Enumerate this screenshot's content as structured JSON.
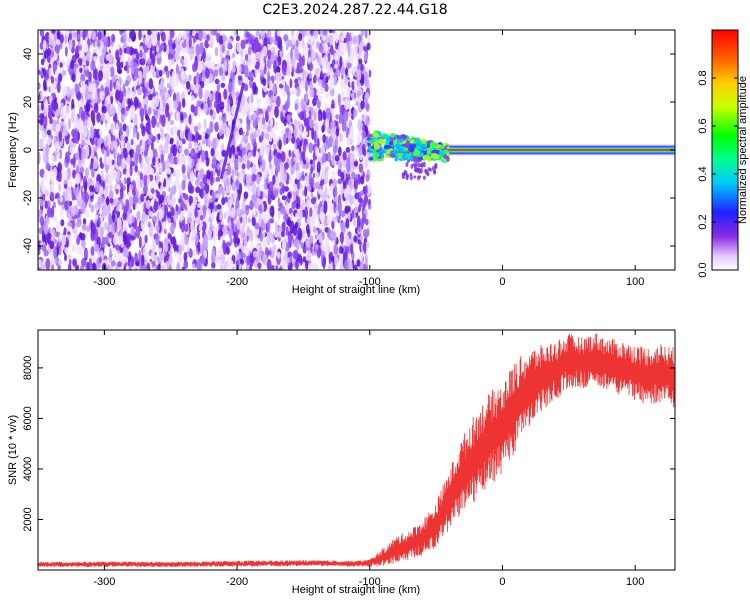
{
  "title": "C2E3.2024.287.22.44.G18",
  "colorbar": {
    "label": "Normalized spectral amplitude",
    "range": [
      0,
      1
    ],
    "ticks": [
      0.0,
      0.2,
      0.4,
      0.6,
      0.8
    ],
    "tick_labels": [
      "0.0",
      "0.2",
      "0.4",
      "0.6",
      "0.8"
    ]
  },
  "colors": {
    "spectrogram_noise": "#7a2ee6",
    "snr_line": "#ee3333",
    "axis": "#000000"
  },
  "chart_data": [
    {
      "type": "heatmap",
      "title": "",
      "xlabel": "Height of straight line (km)",
      "ylabel": "Frequency (Hz)",
      "xlim": [
        -350,
        130
      ],
      "ylim": [
        -50,
        50
      ],
      "xticks": [
        -300,
        -200,
        -100,
        0,
        100
      ],
      "yticks": [
        -40,
        -20,
        0,
        20,
        40
      ],
      "xtick_labels": [
        "-300",
        "-200",
        "-100",
        "0",
        "100"
      ],
      "ytick_labels": [
        "-40",
        "-20",
        "0",
        "20",
        "40"
      ],
      "regions": [
        {
          "x_range": [
            -350,
            -100
          ],
          "y_range": [
            -50,
            50
          ],
          "description": "broadband noise",
          "amplitude": 0.15
        },
        {
          "x_range": [
            -100,
            -40
          ],
          "y_range": [
            -8,
            8
          ],
          "description": "scattered multipath signal",
          "amplitude": 0.35
        },
        {
          "x_range": [
            -40,
            130
          ],
          "y_range": [
            -1,
            1
          ],
          "description": "coherent carrier",
          "amplitude": 0.95
        }
      ],
      "carrier_center_hz": [
        {
          "x": -100,
          "y": 2
        },
        {
          "x": -80,
          "y": 1
        },
        {
          "x": -60,
          "y": -1
        },
        {
          "x": -40,
          "y": 0
        },
        {
          "x": -20,
          "y": 0
        },
        {
          "x": 0,
          "y": 0
        },
        {
          "x": 50,
          "y": 0
        },
        {
          "x": 100,
          "y": 0
        },
        {
          "x": 130,
          "y": 0
        }
      ]
    },
    {
      "type": "line",
      "title": "",
      "xlabel": "Height of straight line (km)",
      "ylabel": "SNR (10 * v/v)",
      "xlim": [
        -350,
        130
      ],
      "ylim": [
        0,
        9500
      ],
      "xticks": [
        -300,
        -200,
        -100,
        0,
        100
      ],
      "yticks": [
        2000,
        4000,
        6000,
        8000
      ],
      "xtick_labels": [
        "-300",
        "-200",
        "-100",
        "0",
        "100"
      ],
      "ytick_labels": [
        "2000",
        "4000",
        "6000",
        "8000"
      ],
      "series": [
        {
          "x": [
            -350,
            -300,
            -250,
            -200,
            -150,
            -110,
            -100,
            -90,
            -80,
            -70,
            -60,
            -50,
            -40,
            -30,
            -20,
            -10,
            0,
            10,
            20,
            30,
            40,
            50,
            60,
            70,
            80,
            90,
            100,
            110,
            120,
            130
          ],
          "mean": [
            220,
            230,
            220,
            250,
            270,
            250,
            280,
            500,
            800,
            1000,
            1300,
            1800,
            2800,
            3800,
            4500,
            5200,
            5600,
            6500,
            7200,
            7600,
            7900,
            8300,
            8200,
            8400,
            8100,
            8000,
            7800,
            7700,
            7800,
            7600
          ],
          "spread": [
            180,
            180,
            180,
            200,
            200,
            200,
            250,
            600,
            900,
            1000,
            1200,
            1500,
            2000,
            2500,
            3000,
            3000,
            3200,
            3000,
            2600,
            2200,
            2000,
            1800,
            1700,
            1700,
            1800,
            1800,
            1900,
            1900,
            2000,
            2000
          ]
        }
      ]
    }
  ]
}
